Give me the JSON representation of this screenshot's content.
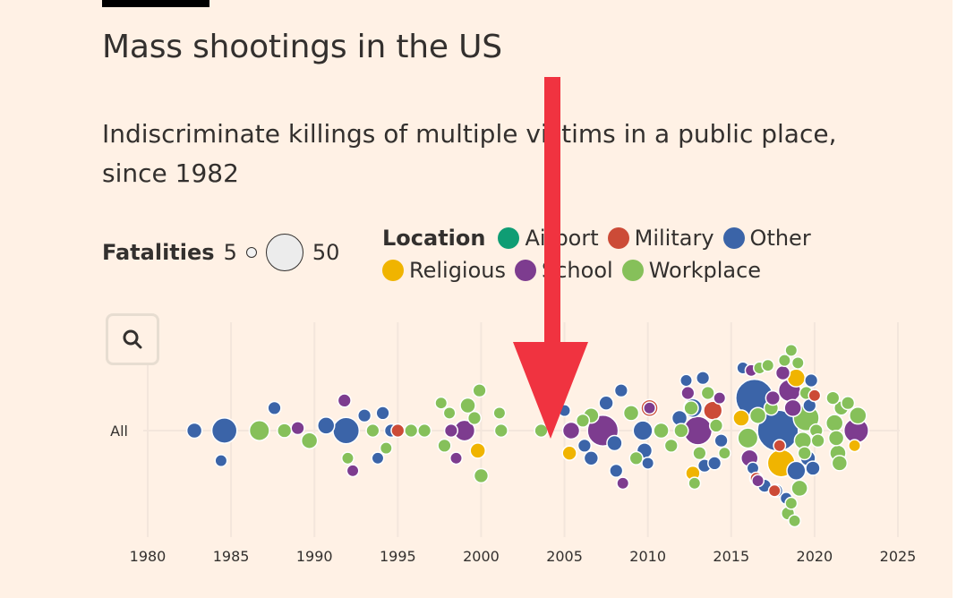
{
  "header": {
    "title": "Mass shootings in the US",
    "subtitle": "Indiscriminate killings of multiple victims in a public place, since 1982"
  },
  "legend": {
    "fatalities_label": "Fatalities",
    "size_small": "5",
    "size_large": "50",
    "location_label": "Location",
    "items": [
      {
        "label": "Airport",
        "color": "#0f9d74"
      },
      {
        "label": "Military",
        "color": "#cc4b37"
      },
      {
        "label": "Other",
        "color": "#3b64a8"
      },
      {
        "label": "Religious",
        "color": "#f0b400"
      },
      {
        "label": "School",
        "color": "#7d3c8f"
      },
      {
        "label": "Workplace",
        "color": "#86c05a"
      }
    ]
  },
  "zoom": {
    "icon": "search-icon"
  },
  "annotation": {
    "icon": "red-arrow-down-icon",
    "color": "#f03340"
  },
  "chart_data": {
    "type": "scatter",
    "title": "Mass shootings in the US",
    "category": "All",
    "x_ticks": [
      "1980",
      "1985",
      "1990",
      "1995",
      "2000",
      "2005",
      "2010",
      "2015",
      "2020",
      "2025"
    ],
    "xlim": [
      1980,
      2025
    ],
    "size_label": "Fatalities",
    "grid": true,
    "points": [
      {
        "x": 1982.8,
        "y": 0,
        "fatalities": 8,
        "location": "Other"
      },
      {
        "x": 1984.4,
        "y": -1.2,
        "fatalities": 5,
        "location": "Other"
      },
      {
        "x": 1984.6,
        "y": 0,
        "fatalities": 22,
        "location": "Other"
      },
      {
        "x": 1986.7,
        "y": 0,
        "fatalities": 14,
        "location": "Workplace"
      },
      {
        "x": 1987.6,
        "y": 0.9,
        "fatalities": 6,
        "location": "Other"
      },
      {
        "x": 1988.2,
        "y": 0,
        "fatalities": 7,
        "location": "Workplace"
      },
      {
        "x": 1989.0,
        "y": 0.1,
        "fatalities": 6,
        "location": "School"
      },
      {
        "x": 1989.7,
        "y": -0.4,
        "fatalities": 9,
        "location": "Workplace"
      },
      {
        "x": 1990.7,
        "y": 0.2,
        "fatalities": 10,
        "location": "Other"
      },
      {
        "x": 1991.8,
        "y": 1.2,
        "fatalities": 6,
        "location": "School"
      },
      {
        "x": 1991.9,
        "y": 0,
        "fatalities": 24,
        "location": "Other"
      },
      {
        "x": 1992.0,
        "y": -1.1,
        "fatalities": 5,
        "location": "Workplace"
      },
      {
        "x": 1992.3,
        "y": -1.6,
        "fatalities": 5,
        "location": "School"
      },
      {
        "x": 1993.0,
        "y": 0.6,
        "fatalities": 6,
        "location": "Other"
      },
      {
        "x": 1993.5,
        "y": 0,
        "fatalities": 6,
        "location": "Workplace"
      },
      {
        "x": 1993.8,
        "y": -1.1,
        "fatalities": 5,
        "location": "Other"
      },
      {
        "x": 1994.1,
        "y": 0.7,
        "fatalities": 6,
        "location": "Other"
      },
      {
        "x": 1994.3,
        "y": -0.7,
        "fatalities": 5,
        "location": "Workplace"
      },
      {
        "x": 1994.6,
        "y": 0,
        "fatalities": 6,
        "location": "Other"
      },
      {
        "x": 1995.0,
        "y": 0,
        "fatalities": 6,
        "location": "Military"
      },
      {
        "x": 1995.8,
        "y": 0,
        "fatalities": 6,
        "location": "Workplace"
      },
      {
        "x": 1996.6,
        "y": 0,
        "fatalities": 6,
        "location": "Workplace"
      },
      {
        "x": 1997.6,
        "y": 1.1,
        "fatalities": 5,
        "location": "Workplace"
      },
      {
        "x": 1997.8,
        "y": -0.6,
        "fatalities": 6,
        "location": "Workplace"
      },
      {
        "x": 1998.1,
        "y": 0.7,
        "fatalities": 5,
        "location": "Workplace"
      },
      {
        "x": 1998.2,
        "y": 0,
        "fatalities": 6,
        "location": "School"
      },
      {
        "x": 1998.5,
        "y": -1.1,
        "fatalities": 5,
        "location": "School"
      },
      {
        "x": 1999.0,
        "y": 0,
        "fatalities": 15,
        "location": "School"
      },
      {
        "x": 1999.2,
        "y": 1.0,
        "fatalities": 8,
        "location": "Workplace"
      },
      {
        "x": 1999.6,
        "y": 0.5,
        "fatalities": 6,
        "location": "Workplace"
      },
      {
        "x": 1999.8,
        "y": -0.8,
        "fatalities": 8,
        "location": "Religious"
      },
      {
        "x": 1999.9,
        "y": 1.6,
        "fatalities": 6,
        "location": "Workplace"
      },
      {
        "x": 2000.0,
        "y": -1.8,
        "fatalities": 7,
        "location": "Workplace"
      },
      {
        "x": 2001.1,
        "y": 0.7,
        "fatalities": 5,
        "location": "Workplace"
      },
      {
        "x": 2001.2,
        "y": 0,
        "fatalities": 6,
        "location": "Workplace"
      },
      {
        "x": 2003.6,
        "y": 0,
        "fatalities": 6,
        "location": "Workplace"
      },
      {
        "x": 2005.0,
        "y": 0.8,
        "fatalities": 5,
        "location": "Other"
      },
      {
        "x": 2005.3,
        "y": -0.9,
        "fatalities": 7,
        "location": "Religious"
      },
      {
        "x": 2005.4,
        "y": 0,
        "fatalities": 10,
        "location": "School"
      },
      {
        "x": 2006.1,
        "y": 0.4,
        "fatalities": 6,
        "location": "Workplace"
      },
      {
        "x": 2006.2,
        "y": -0.6,
        "fatalities": 6,
        "location": "Other"
      },
      {
        "x": 2006.6,
        "y": 0.6,
        "fatalities": 8,
        "location": "Workplace"
      },
      {
        "x": 2006.6,
        "y": -1.1,
        "fatalities": 7,
        "location": "Other"
      },
      {
        "x": 2007.3,
        "y": 0,
        "fatalities": 33,
        "location": "School"
      },
      {
        "x": 2007.5,
        "y": 1.1,
        "fatalities": 7,
        "location": "Other"
      },
      {
        "x": 2008.0,
        "y": -0.5,
        "fatalities": 8,
        "location": "Other"
      },
      {
        "x": 2008.1,
        "y": -1.6,
        "fatalities": 6,
        "location": "Other"
      },
      {
        "x": 2008.4,
        "y": 1.6,
        "fatalities": 6,
        "location": "Other"
      },
      {
        "x": 2008.5,
        "y": -2.1,
        "fatalities": 5,
        "location": "School"
      },
      {
        "x": 2009.0,
        "y": 0.7,
        "fatalities": 8,
        "location": "Workplace"
      },
      {
        "x": 2009.3,
        "y": -1.1,
        "fatalities": 6,
        "location": "Workplace"
      },
      {
        "x": 2009.7,
        "y": 0,
        "fatalities": 13,
        "location": "Other"
      },
      {
        "x": 2009.8,
        "y": -0.8,
        "fatalities": 8,
        "location": "Other"
      },
      {
        "x": 2010.0,
        "y": -1.3,
        "fatalities": 5,
        "location": "Other"
      },
      {
        "x": 2010.1,
        "y": 0.9,
        "fatalities": 5,
        "location": "School"
      },
      {
        "x": 2010.1,
        "y": 0.9,
        "fatalities": 10,
        "location": "Military"
      },
      {
        "x": 2010.8,
        "y": 0,
        "fatalities": 8,
        "location": "Workplace"
      },
      {
        "x": 2011.4,
        "y": -0.6,
        "fatalities": 6,
        "location": "Workplace"
      },
      {
        "x": 2011.9,
        "y": 0.5,
        "fatalities": 8,
        "location": "Other"
      },
      {
        "x": 2012.0,
        "y": 0,
        "fatalities": 7,
        "location": "Workplace"
      },
      {
        "x": 2012.3,
        "y": 2.0,
        "fatalities": 5,
        "location": "Other"
      },
      {
        "x": 2012.4,
        "y": 1.5,
        "fatalities": 6,
        "location": "School"
      },
      {
        "x": 2012.6,
        "y": 0.9,
        "fatalities": 7,
        "location": "Workplace"
      },
      {
        "x": 2012.7,
        "y": 0.9,
        "fatalities": 12,
        "location": "Other"
      },
      {
        "x": 2012.7,
        "y": -1.7,
        "fatalities": 7,
        "location": "Religious"
      },
      {
        "x": 2012.8,
        "y": -2.1,
        "fatalities": 5,
        "location": "Workplace"
      },
      {
        "x": 2013.0,
        "y": 0,
        "fatalities": 28,
        "location": "School"
      },
      {
        "x": 2013.1,
        "y": -0.9,
        "fatalities": 6,
        "location": "Workplace"
      },
      {
        "x": 2013.3,
        "y": 2.1,
        "fatalities": 6,
        "location": "Other"
      },
      {
        "x": 2013.4,
        "y": -1.4,
        "fatalities": 6,
        "location": "Other"
      },
      {
        "x": 2013.6,
        "y": 1.5,
        "fatalities": 6,
        "location": "Workplace"
      },
      {
        "x": 2013.9,
        "y": 0.8,
        "fatalities": 12,
        "location": "Military"
      },
      {
        "x": 2014.0,
        "y": -1.3,
        "fatalities": 6,
        "location": "Other"
      },
      {
        "x": 2014.1,
        "y": 0.2,
        "fatalities": 6,
        "location": "Workplace"
      },
      {
        "x": 2014.3,
        "y": 1.3,
        "fatalities": 5,
        "location": "School"
      },
      {
        "x": 2014.4,
        "y": -0.4,
        "fatalities": 6,
        "location": "Other"
      },
      {
        "x": 2014.6,
        "y": -0.9,
        "fatalities": 5,
        "location": "Workplace"
      },
      {
        "x": 2015.6,
        "y": 0.5,
        "fatalities": 9,
        "location": "Religious"
      },
      {
        "x": 2015.7,
        "y": 2.5,
        "fatalities": 5,
        "location": "Other"
      },
      {
        "x": 2016.0,
        "y": -0.3,
        "fatalities": 14,
        "location": "Workplace"
      },
      {
        "x": 2016.1,
        "y": -1.1,
        "fatalities": 10,
        "location": "School"
      },
      {
        "x": 2016.2,
        "y": 2.4,
        "fatalities": 5,
        "location": "School"
      },
      {
        "x": 2016.3,
        "y": -1.5,
        "fatalities": 5,
        "location": "Other"
      },
      {
        "x": 2016.4,
        "y": 1.3,
        "fatalities": 49,
        "location": "Other"
      },
      {
        "x": 2016.5,
        "y": -1.9,
        "fatalities": 6,
        "location": "Airport"
      },
      {
        "x": 2016.5,
        "y": -1.9,
        "fatalities": 5,
        "location": "Military"
      },
      {
        "x": 2016.6,
        "y": 0.6,
        "fatalities": 9,
        "location": "Workplace"
      },
      {
        "x": 2016.6,
        "y": -2.0,
        "fatalities": 5,
        "location": "School"
      },
      {
        "x": 2016.7,
        "y": 2.5,
        "fatalities": 5,
        "location": "Workplace"
      },
      {
        "x": 2017.0,
        "y": -2.2,
        "fatalities": 6,
        "location": "Other"
      },
      {
        "x": 2017.2,
        "y": 2.6,
        "fatalities": 5,
        "location": "Workplace"
      },
      {
        "x": 2017.4,
        "y": 0.9,
        "fatalities": 7,
        "location": "Workplace"
      },
      {
        "x": 2017.5,
        "y": 1.3,
        "fatalities": 7,
        "location": "School"
      },
      {
        "x": 2017.6,
        "y": -2.4,
        "fatalities": 5,
        "location": "Military"
      },
      {
        "x": 2017.7,
        "y": -2.4,
        "fatalities": 6,
        "location": "Other"
      },
      {
        "x": 2017.8,
        "y": 0,
        "fatalities": 58,
        "location": "Other"
      },
      {
        "x": 2017.9,
        "y": -0.6,
        "fatalities": 5,
        "location": "Military"
      },
      {
        "x": 2018.0,
        "y": -1.3,
        "fatalities": 26,
        "location": "Religious"
      },
      {
        "x": 2018.1,
        "y": 2.3,
        "fatalities": 7,
        "location": "School"
      },
      {
        "x": 2018.2,
        "y": 2.8,
        "fatalities": 5,
        "location": "Workplace"
      },
      {
        "x": 2018.3,
        "y": -2.7,
        "fatalities": 5,
        "location": "Other"
      },
      {
        "x": 2018.4,
        "y": -3.3,
        "fatalities": 6,
        "location": "Workplace"
      },
      {
        "x": 2018.5,
        "y": 1.6,
        "fatalities": 17,
        "location": "School"
      },
      {
        "x": 2018.6,
        "y": 3.2,
        "fatalities": 5,
        "location": "Workplace"
      },
      {
        "x": 2018.6,
        "y": -2.9,
        "fatalities": 5,
        "location": "Workplace"
      },
      {
        "x": 2018.7,
        "y": 0.9,
        "fatalities": 10,
        "location": "School"
      },
      {
        "x": 2018.8,
        "y": -3.6,
        "fatalities": 5,
        "location": "Workplace"
      },
      {
        "x": 2018.9,
        "y": -1.6,
        "fatalities": 12,
        "location": "Other"
      },
      {
        "x": 2018.9,
        "y": 2.1,
        "fatalities": 11,
        "location": "Religious"
      },
      {
        "x": 2019.0,
        "y": 2.7,
        "fatalities": 5,
        "location": "Workplace"
      },
      {
        "x": 2019.1,
        "y": -2.3,
        "fatalities": 9,
        "location": "Workplace"
      },
      {
        "x": 2019.3,
        "y": -0.4,
        "fatalities": 10,
        "location": "Workplace"
      },
      {
        "x": 2019.4,
        "y": -0.9,
        "fatalities": 6,
        "location": "Workplace"
      },
      {
        "x": 2019.5,
        "y": 0.5,
        "fatalities": 23,
        "location": "Workplace"
      },
      {
        "x": 2019.5,
        "y": 1.5,
        "fatalities": 6,
        "location": "Workplace"
      },
      {
        "x": 2019.6,
        "y": -1.1,
        "fatalities": 8,
        "location": "Other"
      },
      {
        "x": 2019.7,
        "y": 1.0,
        "fatalities": 6,
        "location": "Other"
      },
      {
        "x": 2019.8,
        "y": 2.0,
        "fatalities": 6,
        "location": "Other"
      },
      {
        "x": 2019.9,
        "y": -1.5,
        "fatalities": 7,
        "location": "Other"
      },
      {
        "x": 2020.0,
        "y": 1.4,
        "fatalities": 5,
        "location": "Military"
      },
      {
        "x": 2020.1,
        "y": 0,
        "fatalities": 6,
        "location": "Workplace"
      },
      {
        "x": 2020.2,
        "y": -0.4,
        "fatalities": 6,
        "location": "Workplace"
      },
      {
        "x": 2021.1,
        "y": 1.3,
        "fatalities": 6,
        "location": "Workplace"
      },
      {
        "x": 2021.2,
        "y": 0.3,
        "fatalities": 10,
        "location": "Workplace"
      },
      {
        "x": 2021.3,
        "y": -0.3,
        "fatalities": 8,
        "location": "Workplace"
      },
      {
        "x": 2021.4,
        "y": -0.9,
        "fatalities": 9,
        "location": "Workplace"
      },
      {
        "x": 2021.5,
        "y": -1.3,
        "fatalities": 8,
        "location": "Workplace"
      },
      {
        "x": 2021.6,
        "y": 0.9,
        "fatalities": 7,
        "location": "Workplace"
      },
      {
        "x": 2022.0,
        "y": 1.1,
        "fatalities": 6,
        "location": "Workplace"
      },
      {
        "x": 2022.4,
        "y": -0.6,
        "fatalities": 5,
        "location": "Religious"
      },
      {
        "x": 2022.5,
        "y": 0,
        "fatalities": 21,
        "location": "School"
      },
      {
        "x": 2022.6,
        "y": 0.6,
        "fatalities": 10,
        "location": "Workplace"
      }
    ]
  }
}
